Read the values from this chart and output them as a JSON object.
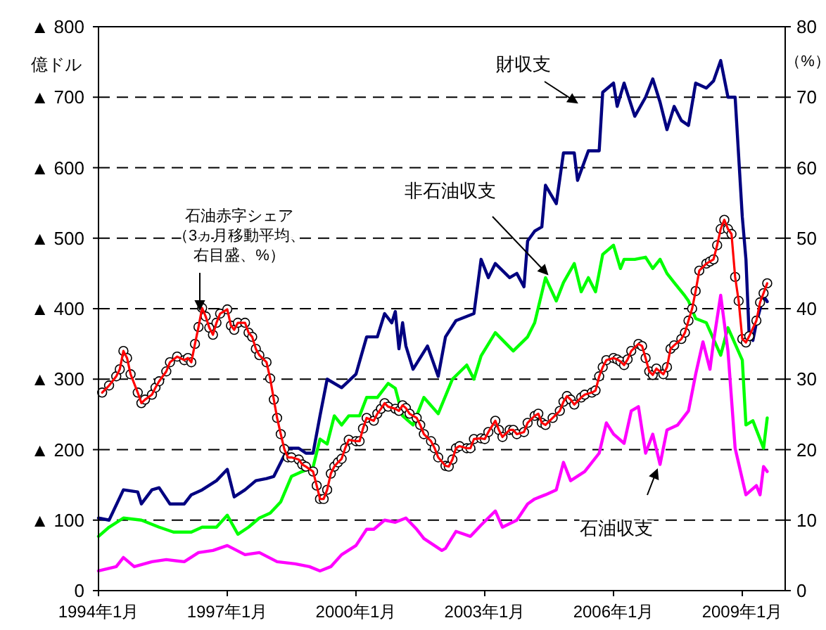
{
  "chart_data": {
    "type": "line",
    "ylabel": "億ドル",
    "y2label": "（%）",
    "xlim": [
      "1994-01",
      "2010-01"
    ],
    "xticks": [
      {
        "value": "1994-01",
        "label": "1994年1月"
      },
      {
        "value": "1997-01",
        "label": "1997年1月"
      },
      {
        "value": "2000-01",
        "label": "2000年1月"
      },
      {
        "value": "2003-01",
        "label": "2003年1月"
      },
      {
        "value": "2006-01",
        "label": "2006年1月"
      },
      {
        "value": "2009-01",
        "label": "2009年1月"
      }
    ],
    "ylim": [
      0,
      800
    ],
    "yticks": [
      0,
      {
        "value": 100,
        "label": "▲ 100"
      },
      {
        "value": 200,
        "label": "▲ 200"
      },
      {
        "value": 300,
        "label": "▲ 300"
      },
      {
        "value": 400,
        "label": "▲ 400"
      },
      {
        "value": 500,
        "label": "▲ 500"
      },
      {
        "value": 600,
        "label": "▲ 600"
      },
      {
        "value": 700,
        "label": "▲ 700"
      },
      {
        "value": 800,
        "label": "▲ 800"
      }
    ],
    "y2lim": [
      0,
      80
    ],
    "y2ticks": [
      0,
      10,
      20,
      30,
      40,
      50,
      60,
      70,
      80
    ],
    "grid": "y",
    "line_style": "solid",
    "series": [
      {
        "name": "財収支",
        "color": "#000080",
        "marker": "none",
        "x": [
          "1994-01",
          "1994-04",
          "1994-08",
          "1994-12",
          "1995-01",
          "1995-04",
          "1995-06",
          "1995-09",
          "1996-01",
          "1996-03",
          "1996-06",
          "1996-10",
          "1997-01",
          "1997-03",
          "1997-06",
          "1997-09",
          "1997-12",
          "1998-02",
          "1998-06",
          "1998-09",
          "1998-11",
          "1999-01",
          "1999-03",
          "1999-05",
          "1999-09",
          "2000-01",
          "2000-04",
          "2000-07",
          "2000-09",
          "2000-11",
          "2000-12",
          "2001-01",
          "2001-02",
          "2001-03",
          "2001-05",
          "2001-09",
          "2001-12",
          "2002-02",
          "2002-05",
          "2002-10",
          "2002-12",
          "2003-02",
          "2003-04",
          "2003-08",
          "2003-10",
          "2003-12",
          "2004-01",
          "2004-03",
          "2004-05",
          "2004-06",
          "2004-09",
          "2004-11",
          "2005-02",
          "2005-03",
          "2005-06",
          "2005-09",
          "2005-10",
          "2006-01",
          "2006-02",
          "2006-04",
          "2006-07",
          "2006-10",
          "2006-12",
          "2007-02",
          "2007-04",
          "2007-06",
          "2007-08",
          "2007-10",
          "2007-12",
          "2008-03",
          "2008-05",
          "2008-07",
          "2008-09",
          "2008-11",
          "2009-01",
          "2009-02",
          "2009-03",
          "2009-04",
          "2009-05",
          "2009-07",
          "2009-08"
        ],
        "values": [
          103,
          100,
          143,
          140,
          123,
          143,
          146,
          123,
          123,
          136,
          143,
          156,
          172,
          133,
          143,
          156,
          159,
          162,
          202,
          202,
          195,
          195,
          248,
          300,
          288,
          307,
          360,
          360,
          393,
          380,
          396,
          343,
          380,
          347,
          314,
          347,
          304,
          360,
          383,
          393,
          470,
          444,
          464,
          444,
          450,
          431,
          496,
          510,
          516,
          575,
          549,
          621,
          621,
          582,
          624,
          624,
          707,
          720,
          687,
          720,
          673,
          700,
          726,
          693,
          654,
          687,
          667,
          660,
          720,
          713,
          723,
          752,
          700,
          700,
          530,
          470,
          360,
          355,
          380,
          418,
          410
        ]
      },
      {
        "name": "非石油収支",
        "color": "#00ff00",
        "marker": "none",
        "x": [
          "1994-01",
          "1994-04",
          "1994-08",
          "1995-01",
          "1995-06",
          "1995-10",
          "1996-03",
          "1996-06",
          "1996-10",
          "1997-01",
          "1997-04",
          "1997-07",
          "1997-10",
          "1998-01",
          "1998-04",
          "1998-07",
          "1998-10",
          "1999-01",
          "1999-03",
          "1999-05",
          "1999-07",
          "1999-09",
          "1999-11",
          "2000-02",
          "2000-04",
          "2000-07",
          "2000-10",
          "2000-12",
          "2001-02",
          "2001-05",
          "2001-08",
          "2001-12",
          "2002-04",
          "2002-08",
          "2002-10",
          "2002-12",
          "2003-04",
          "2003-09",
          "2004-01",
          "2004-03",
          "2004-06",
          "2004-09",
          "2004-11",
          "2005-02",
          "2005-04",
          "2005-06",
          "2005-08",
          "2005-10",
          "2006-01",
          "2006-03",
          "2006-04",
          "2006-07",
          "2006-10",
          "2006-12",
          "2007-02",
          "2007-04",
          "2007-06",
          "2007-09",
          "2007-10",
          "2007-12",
          "2008-03",
          "2008-07",
          "2008-09",
          "2009-01",
          "2009-02",
          "2009-04",
          "2009-07",
          "2009-08"
        ],
        "values": [
          77,
          90,
          103,
          100,
          90,
          83,
          83,
          90,
          90,
          107,
          80,
          90,
          103,
          110,
          126,
          162,
          169,
          175,
          215,
          208,
          248,
          235,
          248,
          248,
          274,
          274,
          294,
          287,
          248,
          235,
          274,
          251,
          300,
          320,
          300,
          333,
          366,
          340,
          360,
          380,
          444,
          411,
          437,
          464,
          424,
          444,
          424,
          477,
          490,
          457,
          470,
          470,
          473,
          457,
          470,
          450,
          437,
          418,
          411,
          386,
          380,
          334,
          373,
          327,
          235,
          241,
          202,
          245
        ]
      },
      {
        "name": "石油収支",
        "color": "#ff00ff",
        "marker": "none",
        "x": [
          "1994-01",
          "1994-06",
          "1994-08",
          "1994-11",
          "1995-04",
          "1995-08",
          "1996-01",
          "1996-05",
          "1996-09",
          "1997-01",
          "1997-06",
          "1997-10",
          "1998-03",
          "1998-08",
          "1998-12",
          "1999-03",
          "1999-06",
          "1999-09",
          "2000-01",
          "2000-04",
          "2000-06",
          "2000-09",
          "2000-12",
          "2001-03",
          "2001-06",
          "2001-08",
          "2002-01",
          "2002-02",
          "2002-05",
          "2002-09",
          "2002-12",
          "2003-04",
          "2003-06",
          "2003-10",
          "2004-01",
          "2004-03",
          "2004-06",
          "2004-09",
          "2004-11",
          "2005-01",
          "2005-05",
          "2005-09",
          "2005-11",
          "2006-01",
          "2006-04",
          "2006-06",
          "2006-08",
          "2006-10",
          "2006-12",
          "2007-02",
          "2007-04",
          "2007-07",
          "2007-10",
          "2007-12",
          "2008-02",
          "2008-04",
          "2008-05",
          "2008-07",
          "2008-09",
          "2008-11",
          "2009-02",
          "2009-05",
          "2009-06",
          "2009-07",
          "2009-08"
        ],
        "values": [
          28,
          34,
          47,
          34,
          41,
          44,
          41,
          54,
          57,
          64,
          51,
          54,
          41,
          38,
          34,
          28,
          34,
          51,
          64,
          87,
          87,
          100,
          97,
          103,
          87,
          74,
          57,
          60,
          84,
          77,
          93,
          113,
          90,
          100,
          123,
          130,
          136,
          143,
          182,
          156,
          169,
          195,
          238,
          222,
          209,
          255,
          261,
          195,
          222,
          179,
          228,
          235,
          255,
          307,
          353,
          314,
          353,
          419,
          340,
          202,
          136,
          149,
          136,
          176,
          169
        ]
      },
      {
        "name": "石油赤字シェア（3ヵ月移動平均、右目盛、%）",
        "color": "#ff0000",
        "marker": "circle",
        "axis": "y2",
        "x": [
          "1994-02",
          "1994-04",
          "1994-06",
          "1994-07",
          "1994-08",
          "1994-09",
          "1994-10",
          "1994-12",
          "1995-01",
          "1995-02",
          "1995-04",
          "1995-05",
          "1995-06",
          "1995-08",
          "1995-09",
          "1995-11",
          "1996-01",
          "1996-02",
          "1996-03",
          "1996-04",
          "1996-05",
          "1996-06",
          "1996-07",
          "1996-08",
          "1996-09",
          "1996-10",
          "1996-11",
          "1997-01",
          "1997-02",
          "1997-03",
          "1997-04",
          "1997-06",
          "1997-07",
          "1997-08",
          "1997-09",
          "1997-10",
          "1997-12",
          "1998-01",
          "1998-02",
          "1998-03",
          "1998-04",
          "1998-05",
          "1998-06",
          "1998-07",
          "1998-09",
          "1998-10",
          "1998-11",
          "1999-01",
          "1999-02",
          "1999-03",
          "1999-04",
          "1999-05",
          "1999-06",
          "1999-07",
          "1999-08",
          "1999-09",
          "1999-10",
          "1999-11",
          "2000-01",
          "2000-02",
          "2000-03",
          "2000-04",
          "2000-06",
          "2000-07",
          "2000-08",
          "2000-09",
          "2000-10",
          "2000-12",
          "2001-01",
          "2001-02",
          "2001-03",
          "2001-04",
          "2001-06",
          "2001-07",
          "2001-08",
          "2001-10",
          "2001-11",
          "2001-12",
          "2002-02",
          "2002-03",
          "2002-04",
          "2002-05",
          "2002-06",
          "2002-08",
          "2002-09",
          "2002-10",
          "2002-12",
          "2003-01",
          "2003-02",
          "2003-04",
          "2003-05",
          "2003-06",
          "2003-08",
          "2003-09",
          "2003-10",
          "2003-12",
          "2004-01",
          "2004-03",
          "2004-04",
          "2004-05",
          "2004-06",
          "2004-08",
          "2004-10",
          "2004-11",
          "2004-12",
          "2005-01",
          "2005-02",
          "2005-04",
          "2005-05",
          "2005-07",
          "2005-08",
          "2005-09",
          "2005-10",
          "2005-11",
          "2006-01",
          "2006-02",
          "2006-03",
          "2006-04",
          "2006-05",
          "2006-06",
          "2006-08",
          "2006-09",
          "2006-10",
          "2006-11",
          "2006-12",
          "2007-01",
          "2007-03",
          "2007-04",
          "2007-05",
          "2007-06",
          "2007-08",
          "2007-09",
          "2007-10",
          "2007-11",
          "2007-12",
          "2008-01",
          "2008-03",
          "2008-04",
          "2008-05",
          "2008-06",
          "2008-07",
          "2008-08",
          "2008-09",
          "2008-10",
          "2008-11",
          "2008-12",
          "2009-01",
          "2009-02",
          "2009-03",
          "2009-05",
          "2009-06",
          "2009-07",
          "2009-08"
        ],
        "values": [
          28.1,
          29.1,
          30.4,
          31.4,
          34.0,
          33.0,
          30.7,
          28.1,
          26.6,
          27.1,
          27.8,
          28.8,
          29.7,
          31.1,
          32.4,
          33.2,
          32.7,
          33.0,
          32.4,
          35.0,
          37.4,
          40.1,
          38.9,
          37.3,
          36.3,
          38.0,
          39.3,
          39.9,
          37.6,
          37.0,
          38.0,
          38.0,
          36.6,
          36.0,
          34.3,
          33.4,
          32.4,
          30.1,
          27.1,
          24.5,
          22.2,
          20.1,
          18.9,
          18.9,
          18.6,
          17.9,
          17.6,
          16.9,
          14.9,
          13.0,
          13.0,
          14.3,
          16.6,
          17.6,
          18.2,
          18.7,
          20.2,
          21.4,
          21.2,
          21.2,
          23.0,
          24.5,
          24.1,
          25.1,
          25.8,
          26.6,
          26.1,
          25.8,
          25.5,
          26.3,
          25.9,
          25.1,
          24.5,
          23.5,
          22.2,
          21.2,
          20.2,
          18.9,
          17.7,
          17.6,
          18.6,
          20.2,
          20.5,
          20.2,
          20.2,
          21.5,
          21.6,
          21.5,
          22.5,
          24.1,
          22.8,
          21.8,
          22.8,
          22.8,
          22.2,
          22.5,
          23.8,
          24.8,
          25.1,
          23.8,
          23.5,
          24.5,
          25.5,
          26.8,
          27.6,
          27.1,
          26.4,
          27.4,
          27.8,
          28.1,
          28.4,
          30.4,
          31.7,
          32.7,
          33.0,
          32.8,
          32.5,
          32.0,
          32.8,
          34.0,
          35.0,
          34.7,
          33.0,
          31.1,
          30.6,
          31.5,
          30.7,
          31.7,
          34.3,
          34.8,
          35.7,
          36.6,
          38.3,
          40.0,
          42.5,
          45.4,
          46.4,
          46.7,
          47.0,
          49.0,
          51.3,
          52.6,
          51.3,
          50.6,
          44.5,
          41.1,
          35.7,
          35.2,
          36.1,
          38.3,
          40.9,
          42.2,
          43.6
        ]
      }
    ]
  }
}
